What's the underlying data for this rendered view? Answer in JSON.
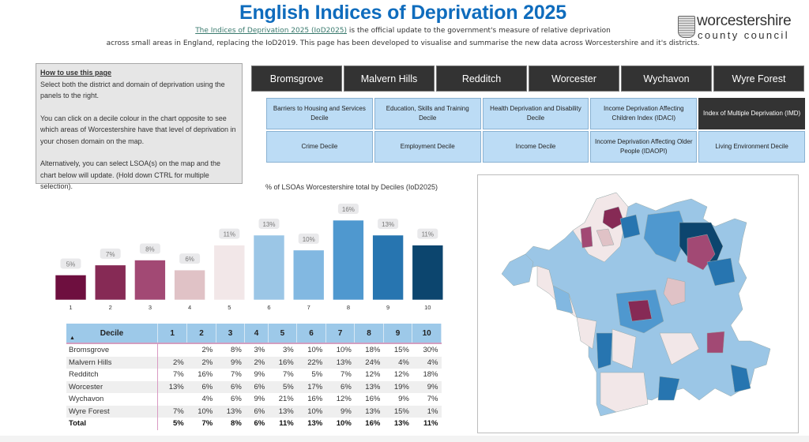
{
  "header": {
    "title": "English Indices of Deprivation 2025",
    "intro_link": "The Indices of Deprivation 2025 (IoD2025)",
    "intro_line1_rest": " is the official update to the government's measure of relative deprivation",
    "intro_line2": "across small areas in England, replacing the IoD2019. This page has been developed to visualise and summarise the new data across Worcestershire and it's districts.",
    "logo_line1": "worcestershire",
    "logo_line2": "county council"
  },
  "howto": {
    "heading": "How to use this page",
    "p1": "Select both the district and domain of deprivation using the panels to the right.",
    "p2": "You can click on a decile colour in the chart opposite to see which areas of Worcestershire have that level of deprivation in your chosen domain on the map.",
    "p3": "Alternatively, you can select LSOA(s) on the map and the chart below will update. (Hold down CTRL for multiple selection)."
  },
  "districts": [
    "Bromsgrove",
    "Malvern Hills",
    "Redditch",
    "Worcester",
    "Wychavon",
    "Wyre Forest"
  ],
  "domains": [
    {
      "label": "Barriers to Housing and Services Decile",
      "selected": false
    },
    {
      "label": "Education, Skills and Training Decile",
      "selected": false
    },
    {
      "label": "Health Deprivation and Disability Decile",
      "selected": false
    },
    {
      "label": "Income Deprivation Affecting Children Index (IDACI)",
      "selected": false
    },
    {
      "label": "Index of Multiple Deprivation (IMD)",
      "selected": true
    },
    {
      "label": "Crime Decile",
      "selected": false
    },
    {
      "label": "Employment Decile",
      "selected": false
    },
    {
      "label": "Income Decile",
      "selected": false
    },
    {
      "label": "Income Deprivation Affecting Older People (IDAOPI)",
      "selected": false
    },
    {
      "label": "Living Environment Decile",
      "selected": false
    }
  ],
  "chart_data": {
    "type": "bar",
    "title": "% of LSOAs Worcestershire total by Deciles (IoD2025)",
    "categories": [
      "1",
      "2",
      "3",
      "4",
      "5",
      "6",
      "7",
      "8",
      "9",
      "10"
    ],
    "values": [
      5,
      7,
      8,
      6,
      11,
      13,
      10,
      16,
      13,
      11
    ],
    "data_labels": [
      "5%",
      "7%",
      "8%",
      "6%",
      "11%",
      "13%",
      "10%",
      "16%",
      "13%",
      "11%"
    ],
    "colors": [
      "#6e0f3f",
      "#862a55",
      "#a24974",
      "#e0c2c6",
      "#f2e7e8",
      "#9bc6e6",
      "#82b8e1",
      "#4f98cf",
      "#2775b0",
      "#0c456e"
    ],
    "xlabel": "",
    "ylabel": "",
    "ylim": [
      0,
      16
    ],
    "grid": false,
    "legend": "none"
  },
  "table": {
    "header_label": "Decile",
    "columns": [
      "1",
      "2",
      "3",
      "4",
      "5",
      "6",
      "7",
      "8",
      "9",
      "10"
    ],
    "rows": [
      {
        "name": "Bromsgrove",
        "values": [
          "",
          "2%",
          "8%",
          "3%",
          "3%",
          "10%",
          "10%",
          "18%",
          "15%",
          "30%"
        ]
      },
      {
        "name": "Malvern Hills",
        "values": [
          "2%",
          "2%",
          "9%",
          "2%",
          "16%",
          "22%",
          "13%",
          "24%",
          "4%",
          "4%"
        ]
      },
      {
        "name": "Redditch",
        "values": [
          "7%",
          "16%",
          "7%",
          "9%",
          "7%",
          "5%",
          "7%",
          "12%",
          "12%",
          "18%"
        ]
      },
      {
        "name": "Worcester",
        "values": [
          "13%",
          "6%",
          "6%",
          "6%",
          "5%",
          "17%",
          "6%",
          "13%",
          "19%",
          "9%"
        ]
      },
      {
        "name": "Wychavon",
        "values": [
          "",
          "4%",
          "6%",
          "9%",
          "21%",
          "16%",
          "12%",
          "16%",
          "9%",
          "7%"
        ]
      },
      {
        "name": "Wyre Forest",
        "values": [
          "7%",
          "10%",
          "13%",
          "6%",
          "13%",
          "10%",
          "9%",
          "13%",
          "15%",
          "1%"
        ]
      }
    ],
    "total": {
      "name": "Total",
      "values": [
        "5%",
        "7%",
        "8%",
        "6%",
        "11%",
        "13%",
        "10%",
        "16%",
        "13%",
        "11%"
      ]
    }
  },
  "map": {
    "description": "Choropleth map of Worcestershire LSOAs coloured by IMD decile"
  }
}
